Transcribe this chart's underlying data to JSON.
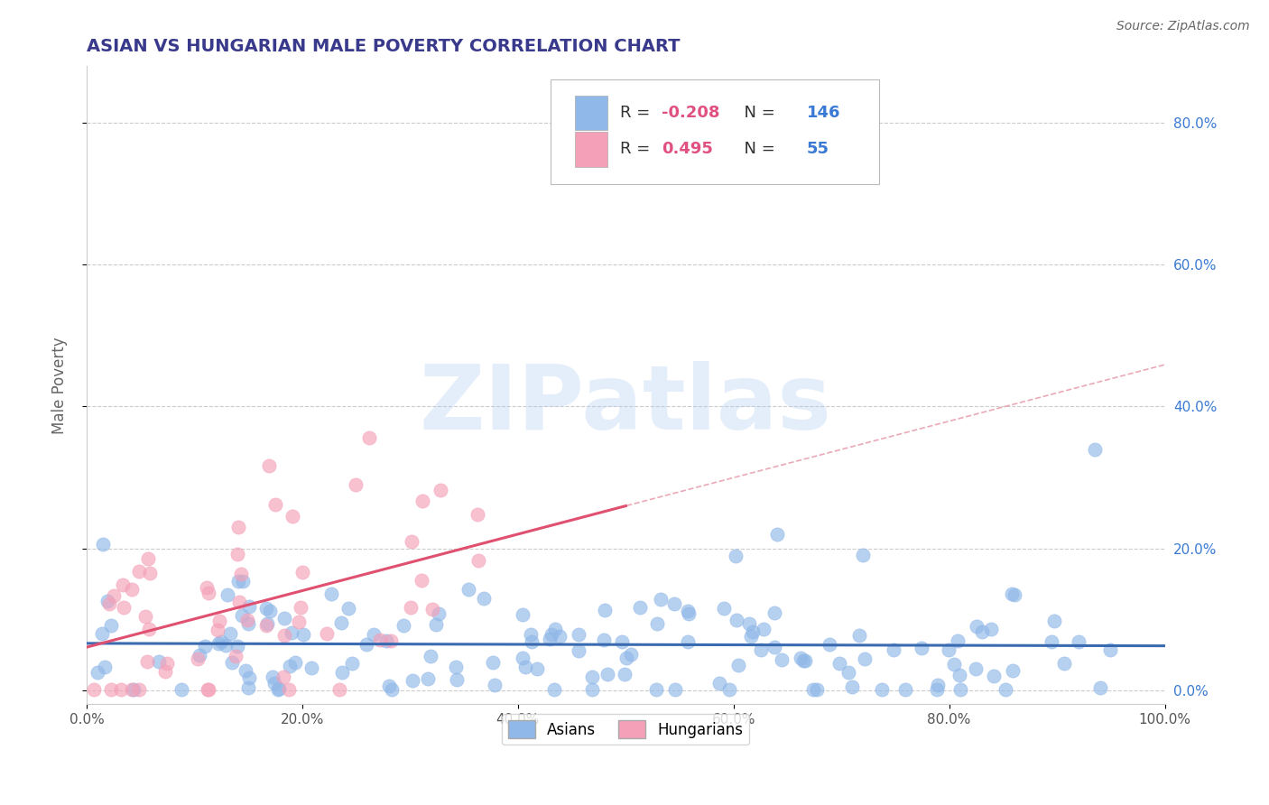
{
  "title": "ASIAN VS HUNGARIAN MALE POVERTY CORRELATION CHART",
  "source": "Source: ZipAtlas.com",
  "ylabel": "Male Poverty",
  "xlim": [
    0.0,
    1.0
  ],
  "ylim": [
    -0.02,
    0.88
  ],
  "xtick_labels": [
    "0.0%",
    "20.0%",
    "40.0%",
    "60.0%",
    "80.0%",
    "100.0%"
  ],
  "xtick_vals": [
    0.0,
    0.2,
    0.4,
    0.6,
    0.8,
    1.0
  ],
  "ytick_labels_right": [
    "0.0%",
    "20.0%",
    "40.0%",
    "60.0%",
    "80.0%"
  ],
  "ytick_vals": [
    0.0,
    0.2,
    0.4,
    0.6,
    0.8
  ],
  "asian_color": "#90b8e8",
  "hungarian_color": "#f4a0b8",
  "asian_R": -0.208,
  "asian_N": 146,
  "hungarian_R": 0.495,
  "hungarian_N": 55,
  "watermark": "ZIPatlas",
  "background_color": "#ffffff",
  "grid_color": "#cccccc",
  "title_color": "#3a3a8c",
  "R_text_color": "#e05080",
  "N_text_color": "#3a7ad4",
  "label_text_color": "#333333",
  "asian_line_color": "#3a6ab0",
  "hungarian_line_color": "#e05070",
  "trend_line_color": "#e8a0b0",
  "right_axis_color": "#3a7ad4"
}
